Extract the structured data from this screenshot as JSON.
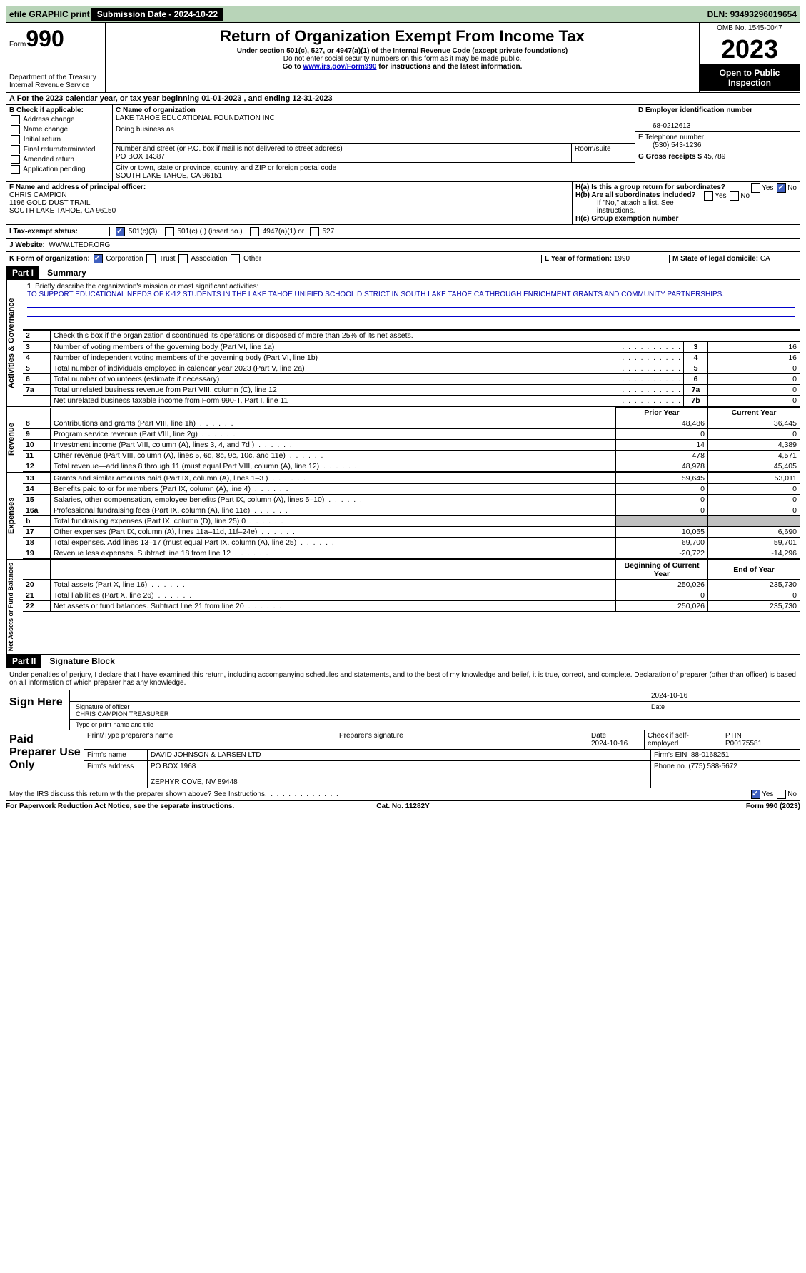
{
  "topbar": {
    "efile": "efile GRAPHIC print",
    "submission_label": "Submission Date - ",
    "submission_date": "2024-10-22",
    "dln_label": "DLN: ",
    "dln": "93493296019654"
  },
  "header": {
    "form_label": "Form",
    "form_num": "990",
    "dept": "Department of the Treasury\nInternal Revenue Service",
    "title": "Return of Organization Exempt From Income Tax",
    "subtitle": "Under section 501(c), 527, or 4947(a)(1) of the Internal Revenue Code (except private foundations)",
    "note1": "Do not enter social security numbers on this form as it may be made public.",
    "note2_pre": "Go to ",
    "note2_link": "www.irs.gov/Form990",
    "note2_post": " for instructions and the latest information.",
    "omb": "OMB No. 1545-0047",
    "year": "2023",
    "inspect": "Open to Public Inspection"
  },
  "row_a": "A For the 2023 calendar year, or tax year beginning 01-01-2023   , and ending 12-31-2023",
  "col_b": {
    "header": "B Check if applicable:",
    "items": [
      "Address change",
      "Name change",
      "Initial return",
      "Final return/terminated",
      "Amended return",
      "Application pending"
    ]
  },
  "col_c": {
    "name_label": "C Name of organization",
    "name": "LAKE TAHOE EDUCATIONAL FOUNDATION INC",
    "dba_label": "Doing business as",
    "dba": "",
    "street_label": "Number and street (or P.O. box if mail is not delivered to street address)",
    "street": "PO BOX 14387",
    "room_label": "Room/suite",
    "room": "",
    "city_label": "City or town, state or province, country, and ZIP or foreign postal code",
    "city": "SOUTH LAKE TAHOE, CA  96151"
  },
  "col_d": {
    "ein_label": "D Employer identification number",
    "ein": "68-0212613",
    "tel_label": "E Telephone number",
    "tel": "(530) 543-1236",
    "gross_label": "G Gross receipts $ ",
    "gross": "45,789"
  },
  "officer": {
    "label": "F Name and address of principal officer:",
    "name": "CHRIS CAMPION",
    "street": "1196 GOLD DUST TRAIL",
    "city": "SOUTH LAKE TAHOE, CA  96150",
    "ha": "H(a) Is this a group return for subordinates?",
    "hb": "H(b) Are all subordinates included?",
    "hb_note": "If \"No,\" attach a list. See instructions.",
    "hc": "H(c) Group exemption number",
    "yes": "Yes",
    "no": "No"
  },
  "tax": {
    "label": "I   Tax-exempt status:",
    "opt1": "501(c)(3)",
    "opt2": "501(c) (  ) (insert no.)",
    "opt3": "4947(a)(1) or",
    "opt4": "527"
  },
  "website": {
    "label": "J   Website:",
    "value": "WWW.LTEDF.ORG"
  },
  "org_form": {
    "k_label": "K Form of organization:",
    "corp": "Corporation",
    "trust": "Trust",
    "assoc": "Association",
    "other": "Other",
    "l_label": "L Year of formation: ",
    "l_val": "1990",
    "m_label": "M State of legal domicile: ",
    "m_val": "CA"
  },
  "part1": {
    "header": "Part I",
    "title": "Summary",
    "section_ag": "Activities & Governance",
    "section_rev": "Revenue",
    "section_exp": "Expenses",
    "section_net": "Net Assets or Fund Balances",
    "line1_label": "Briefly describe the organization's mission or most significant activities:",
    "line1_text": "TO SUPPORT EDUCATIONAL NEEDS OF K-12 STUDENTS IN THE LAKE TAHOE UNIFIED SCHOOL DISTRICT IN SOUTH LAKE TAHOE,CA THROUGH ENRICHMENT GRANTS AND COMMUNITY PARTNERSHIPS.",
    "line2": "Check this box      if the organization discontinued its operations or disposed of more than 25% of its net assets.",
    "lines_ag": [
      {
        "n": "3",
        "d": "Number of voting members of the governing body (Part VI, line 1a)",
        "b": "3",
        "v": "16"
      },
      {
        "n": "4",
        "d": "Number of independent voting members of the governing body (Part VI, line 1b)",
        "b": "4",
        "v": "16"
      },
      {
        "n": "5",
        "d": "Total number of individuals employed in calendar year 2023 (Part V, line 2a)",
        "b": "5",
        "v": "0"
      },
      {
        "n": "6",
        "d": "Total number of volunteers (estimate if necessary)",
        "b": "6",
        "v": "0"
      },
      {
        "n": "7a",
        "d": "Total unrelated business revenue from Part VIII, column (C), line 12",
        "b": "7a",
        "v": "0"
      },
      {
        "n": "",
        "d": "Net unrelated business taxable income from Form 990-T, Part I, line 11",
        "b": "7b",
        "v": "0"
      }
    ],
    "col_prior": "Prior Year",
    "col_current": "Current Year",
    "lines_rev": [
      {
        "n": "8",
        "d": "Contributions and grants (Part VIII, line 1h)",
        "p": "48,486",
        "c": "36,445"
      },
      {
        "n": "9",
        "d": "Program service revenue (Part VIII, line 2g)",
        "p": "0",
        "c": "0"
      },
      {
        "n": "10",
        "d": "Investment income (Part VIII, column (A), lines 3, 4, and 7d )",
        "p": "14",
        "c": "4,389"
      },
      {
        "n": "11",
        "d": "Other revenue (Part VIII, column (A), lines 5, 6d, 8c, 9c, 10c, and 11e)",
        "p": "478",
        "c": "4,571"
      },
      {
        "n": "12",
        "d": "Total revenue—add lines 8 through 11 (must equal Part VIII, column (A), line 12)",
        "p": "48,978",
        "c": "45,405"
      }
    ],
    "lines_exp": [
      {
        "n": "13",
        "d": "Grants and similar amounts paid (Part IX, column (A), lines 1–3 )",
        "p": "59,645",
        "c": "53,011"
      },
      {
        "n": "14",
        "d": "Benefits paid to or for members (Part IX, column (A), line 4)",
        "p": "0",
        "c": "0"
      },
      {
        "n": "15",
        "d": "Salaries, other compensation, employee benefits (Part IX, column (A), lines 5–10)",
        "p": "0",
        "c": "0"
      },
      {
        "n": "16a",
        "d": "Professional fundraising fees (Part IX, column (A), line 11e)",
        "p": "0",
        "c": "0"
      },
      {
        "n": "b",
        "d": "Total fundraising expenses (Part IX, column (D), line 25) 0",
        "p": "",
        "c": "",
        "grey": true
      },
      {
        "n": "17",
        "d": "Other expenses (Part IX, column (A), lines 11a–11d, 11f–24e)",
        "p": "10,055",
        "c": "6,690"
      },
      {
        "n": "18",
        "d": "Total expenses. Add lines 13–17 (must equal Part IX, column (A), line 25)",
        "p": "69,700",
        "c": "59,701"
      },
      {
        "n": "19",
        "d": "Revenue less expenses. Subtract line 18 from line 12",
        "p": "-20,722",
        "c": "-14,296"
      }
    ],
    "col_begin": "Beginning of Current Year",
    "col_end": "End of Year",
    "lines_net": [
      {
        "n": "20",
        "d": "Total assets (Part X, line 16)",
        "p": "250,026",
        "c": "235,730"
      },
      {
        "n": "21",
        "d": "Total liabilities (Part X, line 26)",
        "p": "0",
        "c": "0"
      },
      {
        "n": "22",
        "d": "Net assets or fund balances. Subtract line 21 from line 20",
        "p": "250,026",
        "c": "235,730"
      }
    ]
  },
  "part2": {
    "header": "Part II",
    "title": "Signature Block",
    "declaration": "Under penalties of perjury, I declare that I have examined this return, including accompanying schedules and statements, and to the best of my knowledge and belief, it is true, correct, and complete. Declaration of preparer (other than officer) is based on all information of which preparer has any knowledge.",
    "sign_here": "Sign Here",
    "sig_officer": "Signature of officer",
    "sig_date_label": "Date",
    "sig_date": "2024-10-16",
    "sig_name": "CHRIS CAMPION  TREASURER",
    "sig_type": "Type or print name and title",
    "paid_label": "Paid Preparer Use Only",
    "prep_name_label": "Print/Type preparer's name",
    "prep_name": "",
    "prep_sig_label": "Preparer's signature",
    "prep_date_label": "Date",
    "prep_date": "2024-10-16",
    "prep_check": "Check      if self-employed",
    "ptin_label": "PTIN",
    "ptin": "P00175581",
    "firm_name_label": "Firm's name",
    "firm_name": "DAVID JOHNSON & LARSEN LTD",
    "firm_ein_label": "Firm's EIN",
    "firm_ein": "88-0168251",
    "firm_addr_label": "Firm's address",
    "firm_addr1": "PO BOX 1968",
    "firm_addr2": "ZEPHYR COVE, NV  89448",
    "phone_label": "Phone no. ",
    "phone": "(775) 588-5672",
    "discuss": "May the IRS discuss this return with the preparer shown above? See Instructions.",
    "yes": "Yes",
    "no": "No"
  },
  "footer": {
    "left": "For Paperwork Reduction Act Notice, see the separate instructions.",
    "mid": "Cat. No. 11282Y",
    "right": "Form 990 (2023)"
  }
}
